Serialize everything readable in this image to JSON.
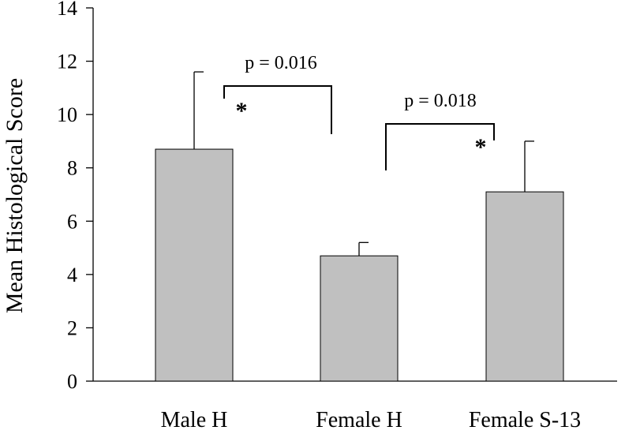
{
  "chart_data": {
    "type": "bar",
    "title": "",
    "xlabel": "",
    "ylabel": "Mean Histological Score",
    "categories": [
      "Male H",
      "Female H",
      "Female S-13"
    ],
    "values": [
      8.7,
      4.7,
      7.1
    ],
    "error_upper": [
      11.6,
      5.2,
      9.0
    ],
    "ylim": [
      0,
      14
    ],
    "yticks": [
      0,
      2,
      4,
      6,
      8,
      10,
      12,
      14
    ],
    "bar_color": "#c0c0c0",
    "annotations": [
      {
        "text": "p = 0.016",
        "from": "Male H",
        "to": "Female H",
        "star": "*"
      },
      {
        "text": "p = 0.018",
        "from": "Female H",
        "to": "Female S-13",
        "star": "*"
      }
    ]
  }
}
